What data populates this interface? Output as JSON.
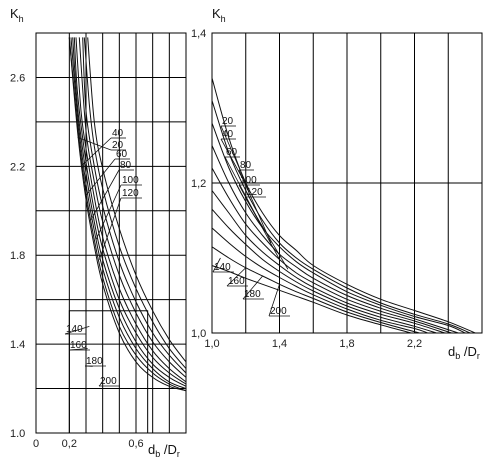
{
  "chart_data": [
    {
      "type": "line",
      "ylabel": "K",
      "ylabel_sub": "h",
      "xlabel_main": "d",
      "xlabel_sub": "b",
      "xlabel_tail": " /D",
      "xlabel_tail_sub": "r",
      "xlim": [
        0,
        0.9
      ],
      "ylim": [
        1.0,
        2.8
      ],
      "x_ticks": [
        {
          "v": 0,
          "t": "0"
        },
        {
          "v": 0.2,
          "t": "0,2"
        },
        {
          "v": 0.6,
          "t": "0,6"
        }
      ],
      "y_ticks": [
        {
          "v": 1.0,
          "t": "1.0"
        },
        {
          "v": 1.4,
          "t": "1.4"
        },
        {
          "v": 1.8,
          "t": "1.8"
        },
        {
          "v": 2.2,
          "t": "2.2"
        },
        {
          "v": 2.6,
          "t": "2.6"
        }
      ],
      "grid": true,
      "series": [
        {
          "name": "20",
          "points": [
            [
              0.2,
              2.78
            ],
            [
              0.25,
              2.35
            ],
            [
              0.3,
              2.05
            ],
            [
              0.35,
              1.84
            ],
            [
              0.4,
              1.67
            ],
            [
              0.5,
              1.45
            ],
            [
              0.6,
              1.32
            ],
            [
              0.7,
              1.25
            ],
            [
              0.8,
              1.21
            ],
            [
              0.9,
              1.19
            ]
          ]
        },
        {
          "name": "40",
          "points": [
            [
              0.2,
              2.78
            ],
            [
              0.25,
              2.38
            ],
            [
              0.3,
              2.08
            ],
            [
              0.35,
              1.87
            ],
            [
              0.4,
              1.7
            ],
            [
              0.5,
              1.48
            ],
            [
              0.6,
              1.35
            ],
            [
              0.7,
              1.27
            ],
            [
              0.8,
              1.22
            ],
            [
              0.9,
              1.19
            ]
          ]
        },
        {
          "name": "60",
          "points": [
            [
              0.21,
              2.78
            ],
            [
              0.25,
              2.42
            ],
            [
              0.3,
              2.12
            ],
            [
              0.35,
              1.91
            ],
            [
              0.4,
              1.74
            ],
            [
              0.5,
              1.52
            ],
            [
              0.6,
              1.38
            ],
            [
              0.7,
              1.29
            ],
            [
              0.8,
              1.23
            ],
            [
              0.9,
              1.2
            ]
          ]
        },
        {
          "name": "80",
          "points": [
            [
              0.22,
              2.78
            ],
            [
              0.25,
              2.46
            ],
            [
              0.3,
              2.17
            ],
            [
              0.35,
              1.95
            ],
            [
              0.4,
              1.78
            ],
            [
              0.5,
              1.56
            ],
            [
              0.6,
              1.41
            ],
            [
              0.7,
              1.31
            ],
            [
              0.8,
              1.25
            ],
            [
              0.9,
              1.21
            ]
          ]
        },
        {
          "name": "100",
          "points": [
            [
              0.23,
              2.78
            ],
            [
              0.25,
              2.52
            ],
            [
              0.3,
              2.22
            ],
            [
              0.35,
              2.0
            ],
            [
              0.4,
              1.83
            ],
            [
              0.5,
              1.6
            ],
            [
              0.6,
              1.45
            ],
            [
              0.7,
              1.34
            ],
            [
              0.8,
              1.27
            ],
            [
              0.9,
              1.22
            ]
          ]
        },
        {
          "name": "120",
          "points": [
            [
              0.24,
              2.78
            ],
            [
              0.27,
              2.45
            ],
            [
              0.3,
              2.28
            ],
            [
              0.35,
              2.06
            ],
            [
              0.4,
              1.88
            ],
            [
              0.5,
              1.65
            ],
            [
              0.6,
              1.49
            ],
            [
              0.7,
              1.37
            ],
            [
              0.8,
              1.29
            ],
            [
              0.9,
              1.23
            ]
          ]
        },
        {
          "name": "140",
          "points": [
            [
              0.26,
              2.78
            ],
            [
              0.3,
              2.36
            ],
            [
              0.35,
              2.13
            ],
            [
              0.4,
              1.95
            ],
            [
              0.5,
              1.71
            ],
            [
              0.6,
              1.54
            ],
            [
              0.7,
              1.41
            ],
            [
              0.8,
              1.32
            ],
            [
              0.9,
              1.25
            ]
          ]
        },
        {
          "name": "160",
          "points": [
            [
              0.28,
              2.78
            ],
            [
              0.3,
              2.45
            ],
            [
              0.35,
              2.2
            ],
            [
              0.4,
              2.02
            ],
            [
              0.5,
              1.77
            ],
            [
              0.6,
              1.59
            ],
            [
              0.7,
              1.45
            ],
            [
              0.8,
              1.35
            ],
            [
              0.9,
              1.27
            ]
          ]
        },
        {
          "name": "180",
          "points": [
            [
              0.29,
              2.78
            ],
            [
              0.32,
              2.48
            ],
            [
              0.35,
              2.29
            ],
            [
              0.4,
              2.1
            ],
            [
              0.5,
              1.84
            ],
            [
              0.6,
              1.65
            ],
            [
              0.7,
              1.5
            ],
            [
              0.8,
              1.38
            ],
            [
              0.9,
              1.29
            ]
          ]
        },
        {
          "name": "200",
          "points": [
            [
              0.31,
              2.78
            ],
            [
              0.35,
              2.4
            ],
            [
              0.4,
              2.19
            ],
            [
              0.5,
              1.92
            ],
            [
              0.6,
              1.71
            ],
            [
              0.7,
              1.55
            ],
            [
              0.8,
              1.42
            ],
            [
              0.9,
              1.32
            ]
          ]
        }
      ]
    },
    {
      "type": "line",
      "ylabel": "K",
      "ylabel_sub": "h",
      "xlabel_main": "d",
      "xlabel_sub": "b",
      "xlabel_tail": " /D",
      "xlabel_tail_sub": "r",
      "xlim": [
        1.0,
        2.6
      ],
      "ylim": [
        1.0,
        1.4
      ],
      "x_ticks": [
        {
          "v": 1.0,
          "t": "1,0"
        },
        {
          "v": 1.4,
          "t": "1,4"
        },
        {
          "v": 1.8,
          "t": "1,8"
        },
        {
          "v": 2.2,
          "t": "2,2"
        }
      ],
      "y_ticks": [
        {
          "v": 1.0,
          "t": "1,0"
        },
        {
          "v": 1.2,
          "t": "1,2"
        },
        {
          "v": 1.4,
          "t": "1,4"
        }
      ],
      "grid": true,
      "series": [
        {
          "name": "20",
          "points": [
            [
              1.0,
              1.34
            ],
            [
              1.1,
              1.26
            ],
            [
              1.2,
              1.2
            ],
            [
              1.3,
              1.16
            ],
            [
              1.4,
              1.13
            ],
            [
              1.5,
              1.11
            ],
            [
              1.6,
              1.09
            ],
            [
              1.8,
              1.065
            ],
            [
              2.0,
              1.045
            ],
            [
              2.2,
              1.03
            ],
            [
              2.4,
              1.015
            ],
            [
              2.56,
              1.0
            ]
          ]
        },
        {
          "name": "40",
          "points": [
            [
              1.0,
              1.31
            ],
            [
              1.1,
              1.24
            ],
            [
              1.2,
              1.19
            ],
            [
              1.3,
              1.15
            ],
            [
              1.4,
              1.12
            ],
            [
              1.5,
              1.1
            ],
            [
              1.6,
              1.085
            ],
            [
              1.8,
              1.06
            ],
            [
              2.0,
              1.04
            ],
            [
              2.2,
              1.025
            ],
            [
              2.4,
              1.012
            ],
            [
              2.53,
              1.0
            ]
          ]
        },
        {
          "name": "60",
          "points": [
            [
              1.0,
              1.28
            ],
            [
              1.1,
              1.22
            ],
            [
              1.2,
              1.175
            ],
            [
              1.3,
              1.14
            ],
            [
              1.4,
              1.115
            ],
            [
              1.5,
              1.095
            ],
            [
              1.6,
              1.08
            ],
            [
              1.8,
              1.055
            ],
            [
              2.0,
              1.037
            ],
            [
              2.2,
              1.022
            ],
            [
              2.4,
              1.01
            ],
            [
              2.5,
              1.0
            ]
          ]
        },
        {
          "name": "80",
          "points": [
            [
              1.0,
              1.25
            ],
            [
              1.1,
              1.2
            ],
            [
              1.2,
              1.16
            ],
            [
              1.3,
              1.13
            ],
            [
              1.4,
              1.105
            ],
            [
              1.5,
              1.088
            ],
            [
              1.6,
              1.073
            ],
            [
              1.8,
              1.05
            ],
            [
              2.0,
              1.033
            ],
            [
              2.2,
              1.019
            ],
            [
              2.46,
              1.0
            ]
          ]
        },
        {
          "name": "100",
          "points": [
            [
              1.0,
              1.22
            ],
            [
              1.1,
              1.18
            ],
            [
              1.2,
              1.145
            ],
            [
              1.3,
              1.12
            ],
            [
              1.4,
              1.098
            ],
            [
              1.5,
              1.08
            ],
            [
              1.6,
              1.067
            ],
            [
              1.8,
              1.045
            ],
            [
              2.0,
              1.029
            ],
            [
              2.2,
              1.016
            ],
            [
              2.42,
              1.0
            ]
          ]
        },
        {
          "name": "120",
          "points": [
            [
              1.0,
              1.19
            ],
            [
              1.1,
              1.16
            ],
            [
              1.2,
              1.13
            ],
            [
              1.3,
              1.108
            ],
            [
              1.4,
              1.09
            ],
            [
              1.5,
              1.074
            ],
            [
              1.6,
              1.061
            ],
            [
              1.8,
              1.04
            ],
            [
              2.0,
              1.025
            ],
            [
              2.2,
              1.013
            ],
            [
              2.38,
              1.0
            ]
          ]
        },
        {
          "name": "140",
          "points": [
            [
              1.0,
              1.165
            ],
            [
              1.1,
              1.14
            ],
            [
              1.2,
              1.118
            ],
            [
              1.3,
              1.098
            ],
            [
              1.4,
              1.082
            ],
            [
              1.5,
              1.068
            ],
            [
              1.6,
              1.056
            ],
            [
              1.8,
              1.036
            ],
            [
              2.0,
              1.021
            ],
            [
              2.2,
              1.009
            ],
            [
              2.33,
              1.0
            ]
          ]
        },
        {
          "name": "160",
          "points": [
            [
              1.0,
              1.14
            ],
            [
              1.1,
              1.12
            ],
            [
              1.2,
              1.102
            ],
            [
              1.3,
              1.087
            ],
            [
              1.4,
              1.074
            ],
            [
              1.5,
              1.062
            ],
            [
              1.6,
              1.051
            ],
            [
              1.8,
              1.032
            ],
            [
              2.0,
              1.017
            ],
            [
              2.2,
              1.006
            ],
            [
              2.28,
              1.0
            ]
          ]
        },
        {
          "name": "180",
          "points": [
            [
              1.0,
              1.115
            ],
            [
              1.1,
              1.1
            ],
            [
              1.2,
              1.087
            ],
            [
              1.3,
              1.076
            ],
            [
              1.4,
              1.065
            ],
            [
              1.5,
              1.055
            ],
            [
              1.6,
              1.046
            ],
            [
              1.8,
              1.028
            ],
            [
              2.0,
              1.014
            ],
            [
              2.23,
              1.0
            ]
          ]
        },
        {
          "name": "200",
          "points": [
            [
              1.0,
              1.09
            ],
            [
              1.1,
              1.082
            ],
            [
              1.2,
              1.073
            ],
            [
              1.3,
              1.065
            ],
            [
              1.4,
              1.057
            ],
            [
              1.5,
              1.049
            ],
            [
              1.6,
              1.041
            ],
            [
              1.8,
              1.024
            ],
            [
              2.0,
              1.011
            ],
            [
              2.18,
              1.0
            ]
          ]
        }
      ]
    }
  ]
}
